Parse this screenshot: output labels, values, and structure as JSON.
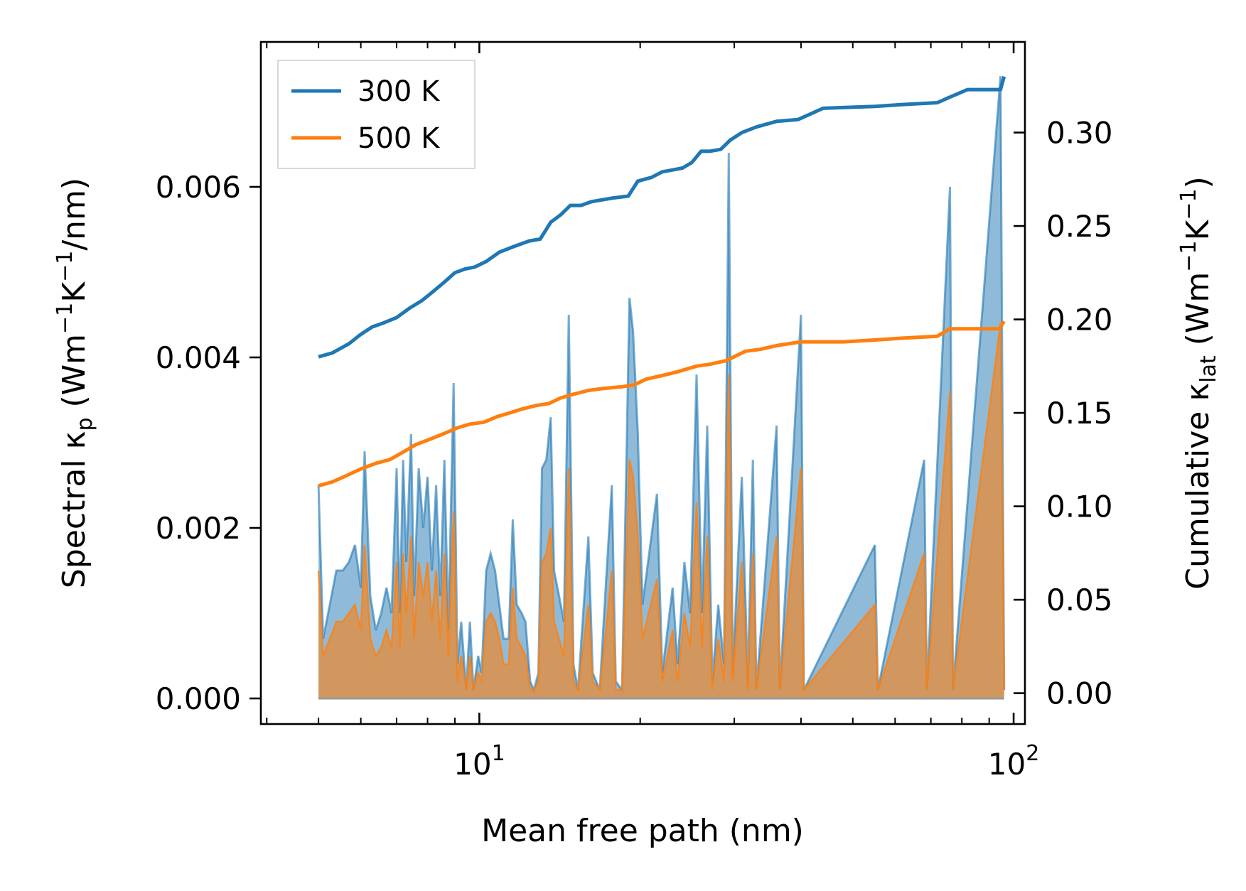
{
  "chart_data": {
    "type": "line",
    "title": "",
    "xlabel": "Mean free path (nm)",
    "xscale": "log",
    "xlim": [
      3.9,
      105
    ],
    "x_ticks": [
      {
        "value": 10,
        "base": "10",
        "exp": "1"
      },
      {
        "value": 100,
        "base": "10",
        "exp": "2"
      }
    ],
    "y_left": {
      "label": {
        "prefix": "Spectral κ",
        "sub": "p",
        "unit_a": " (Wm",
        "sup_a": "−1",
        "unit_b": "K",
        "sup_b": "−1",
        "unit_c": "/nm)"
      },
      "lim": [
        -0.0003,
        0.0077
      ],
      "ticks": [
        "0.000",
        "0.002",
        "0.004",
        "0.006"
      ],
      "tick_values": [
        0,
        0.002,
        0.004,
        0.006
      ]
    },
    "y_right": {
      "label": {
        "prefix": "Cumulative κ",
        "sub": "lat",
        "unit_a": " (Wm",
        "sup_a": "−1",
        "unit_b": "K",
        "sup_b": "−1",
        "unit_c": ")"
      },
      "lim": [
        -0.0165,
        0.3485
      ],
      "ticks": [
        "0.00",
        "0.05",
        "0.10",
        "0.15",
        "0.20",
        "0.25",
        "0.30"
      ],
      "tick_values": [
        0,
        0.05,
        0.1,
        0.15,
        0.2,
        0.25,
        0.3
      ]
    },
    "legend": {
      "position": "top-left",
      "entries": [
        "300 K",
        "500 K"
      ]
    },
    "colors": {
      "t300": "#1f77b4",
      "t500": "#ff7f0e",
      "fill300": "#1f77b4",
      "fill500": "#ff7f0e"
    },
    "spectral_300K": [
      [
        5.0,
        0.0025
      ],
      [
        5.1,
        0.0007
      ],
      [
        5.25,
        0.0011
      ],
      [
        5.4,
        0.0015
      ],
      [
        5.55,
        0.0015
      ],
      [
        5.7,
        0.0016
      ],
      [
        5.85,
        0.0018
      ],
      [
        6.0,
        0.0013
      ],
      [
        6.1,
        0.0029
      ],
      [
        6.25,
        0.0012
      ],
      [
        6.4,
        0.0008
      ],
      [
        6.55,
        0.001
      ],
      [
        6.7,
        0.0013
      ],
      [
        6.85,
        0.001
      ],
      [
        7.0,
        0.0027
      ],
      [
        7.1,
        0.001
      ],
      [
        7.2,
        0.0028
      ],
      [
        7.3,
        0.0016
      ],
      [
        7.45,
        0.0031
      ],
      [
        7.55,
        0.0012
      ],
      [
        7.7,
        0.0027
      ],
      [
        7.85,
        0.002
      ],
      [
        8.0,
        0.0026
      ],
      [
        8.15,
        0.0015
      ],
      [
        8.3,
        0.0025
      ],
      [
        8.45,
        0.0012
      ],
      [
        8.6,
        0.0028
      ],
      [
        8.75,
        0.0008
      ],
      [
        8.95,
        0.0037
      ],
      [
        9.1,
        0.0004
      ],
      [
        9.25,
        0.0009
      ],
      [
        9.45,
        0.0001
      ],
      [
        9.6,
        0.0009
      ],
      [
        9.75,
        0.0001
      ],
      [
        9.95,
        0.0005
      ],
      [
        10.1,
        0.0003
      ],
      [
        10.3,
        0.0015
      ],
      [
        10.5,
        0.0017
      ],
      [
        10.7,
        0.0015
      ],
      [
        10.9,
        0.0011
      ],
      [
        11.1,
        0.0007
      ],
      [
        11.35,
        0.0007
      ],
      [
        11.55,
        0.0021
      ],
      [
        11.75,
        0.0011
      ],
      [
        12.0,
        0.001
      ],
      [
        12.2,
        0.0009
      ],
      [
        12.45,
        0.0002
      ],
      [
        12.65,
        0.0001
      ],
      [
        12.9,
        0.0003
      ],
      [
        13.1,
        0.0027
      ],
      [
        13.35,
        0.0028
      ],
      [
        13.6,
        0.0033
      ],
      [
        13.8,
        0.0015
      ],
      [
        14.1,
        0.0012
      ],
      [
        14.4,
        0.0009
      ],
      [
        14.7,
        0.0045
      ],
      [
        15.0,
        0.0004
      ],
      [
        15.3,
        0.0001
      ],
      [
        16.0,
        0.0019
      ],
      [
        16.3,
        0.0003
      ],
      [
        16.8,
        0.0001
      ],
      [
        17.2,
        0.0012
      ],
      [
        17.7,
        0.0025
      ],
      [
        18.0,
        0.0002
      ],
      [
        18.5,
        0.0001
      ],
      [
        19.1,
        0.0047
      ],
      [
        19.4,
        0.0043
      ],
      [
        19.8,
        0.0031
      ],
      [
        20.2,
        0.0011
      ],
      [
        21.5,
        0.0024
      ],
      [
        22.0,
        0.0003
      ],
      [
        23.0,
        0.0013
      ],
      [
        23.5,
        0.0004
      ],
      [
        24.2,
        0.0016
      ],
      [
        24.8,
        0.001
      ],
      [
        25.5,
        0.0038
      ],
      [
        26.1,
        0.001
      ],
      [
        26.7,
        0.0032
      ],
      [
        27.3,
        0.0002
      ],
      [
        28.0,
        0.0011
      ],
      [
        28.7,
        0.0004
      ],
      [
        29.3,
        0.0064
      ],
      [
        29.8,
        0.0003
      ],
      [
        31.0,
        0.0026
      ],
      [
        31.8,
        0.0002
      ],
      [
        32.5,
        0.0028
      ],
      [
        33.0,
        0.0001
      ],
      [
        36.0,
        0.0032
      ],
      [
        36.5,
        0.0001
      ],
      [
        40.0,
        0.0045
      ],
      [
        40.5,
        0.0001
      ],
      [
        55.0,
        0.0018
      ],
      [
        55.7,
        0.0001
      ],
      [
        68.0,
        0.0028
      ],
      [
        68.8,
        0.0001
      ],
      [
        76.0,
        0.006
      ],
      [
        77.0,
        0.0001
      ],
      [
        94.5,
        0.0073
      ],
      [
        96.0,
        0.0001
      ]
    ],
    "spectral_500K": [
      [
        5.0,
        0.0015
      ],
      [
        5.1,
        0.0005
      ],
      [
        5.25,
        0.0007
      ],
      [
        5.4,
        0.0009
      ],
      [
        5.55,
        0.0009
      ],
      [
        5.7,
        0.001
      ],
      [
        5.85,
        0.0011
      ],
      [
        6.0,
        0.0008
      ],
      [
        6.1,
        0.0018
      ],
      [
        6.25,
        0.0007
      ],
      [
        6.4,
        0.0005
      ],
      [
        6.55,
        0.0006
      ],
      [
        6.7,
        0.0008
      ],
      [
        6.85,
        0.0006
      ],
      [
        7.0,
        0.0016
      ],
      [
        7.1,
        0.0006
      ],
      [
        7.2,
        0.0017
      ],
      [
        7.3,
        0.001
      ],
      [
        7.45,
        0.0019
      ],
      [
        7.55,
        0.0007
      ],
      [
        7.7,
        0.0016
      ],
      [
        7.85,
        0.0012
      ],
      [
        8.0,
        0.0016
      ],
      [
        8.15,
        0.0009
      ],
      [
        8.3,
        0.0015
      ],
      [
        8.45,
        0.0007
      ],
      [
        8.6,
        0.0017
      ],
      [
        8.75,
        0.0005
      ],
      [
        8.95,
        0.0022
      ],
      [
        9.1,
        0.0002
      ],
      [
        9.25,
        0.0005
      ],
      [
        9.45,
        0.0001
      ],
      [
        9.6,
        0.0005
      ],
      [
        9.75,
        0.0001
      ],
      [
        9.95,
        0.0003
      ],
      [
        10.1,
        0.0002
      ],
      [
        10.3,
        0.0009
      ],
      [
        10.5,
        0.001
      ],
      [
        10.7,
        0.0009
      ],
      [
        10.9,
        0.0007
      ],
      [
        11.1,
        0.0004
      ],
      [
        11.35,
        0.0004
      ],
      [
        11.55,
        0.0013
      ],
      [
        11.75,
        0.0007
      ],
      [
        12.0,
        0.0006
      ],
      [
        12.2,
        0.0005
      ],
      [
        12.45,
        0.0001
      ],
      [
        12.65,
        0.0001
      ],
      [
        12.9,
        0.0002
      ],
      [
        13.1,
        0.0016
      ],
      [
        13.35,
        0.0017
      ],
      [
        13.6,
        0.002
      ],
      [
        13.8,
        0.0009
      ],
      [
        14.1,
        0.0007
      ],
      [
        14.4,
        0.0005
      ],
      [
        14.7,
        0.0027
      ],
      [
        15.0,
        0.0002
      ],
      [
        15.3,
        0.0001
      ],
      [
        16.0,
        0.0011
      ],
      [
        16.3,
        0.0002
      ],
      [
        16.8,
        0.0001
      ],
      [
        17.2,
        0.0007
      ],
      [
        17.7,
        0.0015
      ],
      [
        18.0,
        0.0001
      ],
      [
        18.5,
        0.0001
      ],
      [
        19.1,
        0.0028
      ],
      [
        19.4,
        0.0026
      ],
      [
        19.8,
        0.0019
      ],
      [
        20.2,
        0.0007
      ],
      [
        21.5,
        0.0014
      ],
      [
        22.0,
        0.0002
      ],
      [
        23.0,
        0.0008
      ],
      [
        23.5,
        0.0002
      ],
      [
        24.2,
        0.001
      ],
      [
        24.8,
        0.0006
      ],
      [
        25.5,
        0.0023
      ],
      [
        26.1,
        0.0006
      ],
      [
        26.7,
        0.0019
      ],
      [
        27.3,
        0.0001
      ],
      [
        28.0,
        0.0007
      ],
      [
        28.7,
        0.0002
      ],
      [
        29.3,
        0.0038
      ],
      [
        29.8,
        0.0002
      ],
      [
        31.0,
        0.0016
      ],
      [
        31.8,
        0.0001
      ],
      [
        32.5,
        0.0017
      ],
      [
        33.0,
        0.0001
      ],
      [
        36.0,
        0.0019
      ],
      [
        36.5,
        0.0001
      ],
      [
        40.0,
        0.0027
      ],
      [
        40.5,
        0.0001
      ],
      [
        55.0,
        0.0011
      ],
      [
        55.7,
        0.0001
      ],
      [
        68.0,
        0.0017
      ],
      [
        68.8,
        0.0001
      ],
      [
        76.0,
        0.0036
      ],
      [
        77.0,
        0.0001
      ],
      [
        94.5,
        0.0044
      ],
      [
        96.0,
        0.0001
      ]
    ],
    "cumulative_300K": [
      [
        5.0,
        0.18
      ],
      [
        5.3,
        0.182
      ],
      [
        5.7,
        0.187
      ],
      [
        6.0,
        0.192
      ],
      [
        6.3,
        0.196
      ],
      [
        6.6,
        0.198
      ],
      [
        7.0,
        0.201
      ],
      [
        7.4,
        0.206
      ],
      [
        7.8,
        0.21
      ],
      [
        8.2,
        0.215
      ],
      [
        8.6,
        0.22
      ],
      [
        9.0,
        0.225
      ],
      [
        9.4,
        0.227
      ],
      [
        9.8,
        0.228
      ],
      [
        10.3,
        0.231
      ],
      [
        10.9,
        0.236
      ],
      [
        11.6,
        0.239
      ],
      [
        12.4,
        0.242
      ],
      [
        13.0,
        0.243
      ],
      [
        13.6,
        0.252
      ],
      [
        14.2,
        0.256
      ],
      [
        14.8,
        0.261
      ],
      [
        15.5,
        0.261
      ],
      [
        16.2,
        0.263
      ],
      [
        17.0,
        0.264
      ],
      [
        17.8,
        0.265
      ],
      [
        19.0,
        0.266
      ],
      [
        19.8,
        0.274
      ],
      [
        21.0,
        0.276
      ],
      [
        22.0,
        0.279
      ],
      [
        23.0,
        0.28
      ],
      [
        24.0,
        0.281
      ],
      [
        25.0,
        0.284
      ],
      [
        26.0,
        0.29
      ],
      [
        27.0,
        0.29
      ],
      [
        28.3,
        0.291
      ],
      [
        29.5,
        0.296
      ],
      [
        31.0,
        0.3
      ],
      [
        33.0,
        0.303
      ],
      [
        36.0,
        0.306
      ],
      [
        39.5,
        0.307
      ],
      [
        44.0,
        0.313
      ],
      [
        55.0,
        0.314
      ],
      [
        62.0,
        0.315
      ],
      [
        72.0,
        0.316
      ],
      [
        76.0,
        0.319
      ],
      [
        82.0,
        0.323
      ],
      [
        94.5,
        0.323
      ],
      [
        96.0,
        0.33
      ]
    ],
    "cumulative_500K": [
      [
        5.0,
        0.111
      ],
      [
        5.3,
        0.113
      ],
      [
        5.6,
        0.116
      ],
      [
        6.0,
        0.12
      ],
      [
        6.4,
        0.123
      ],
      [
        6.8,
        0.125
      ],
      [
        7.2,
        0.129
      ],
      [
        7.6,
        0.133
      ],
      [
        8.1,
        0.136
      ],
      [
        8.6,
        0.139
      ],
      [
        9.1,
        0.142
      ],
      [
        9.6,
        0.144
      ],
      [
        10.2,
        0.145
      ],
      [
        10.8,
        0.148
      ],
      [
        11.4,
        0.15
      ],
      [
        12.0,
        0.152
      ],
      [
        12.8,
        0.154
      ],
      [
        13.5,
        0.155
      ],
      [
        14.2,
        0.158
      ],
      [
        15.0,
        0.16
      ],
      [
        16.0,
        0.162
      ],
      [
        17.0,
        0.163
      ],
      [
        18.5,
        0.164
      ],
      [
        19.5,
        0.165
      ],
      [
        20.5,
        0.168
      ],
      [
        22.0,
        0.17
      ],
      [
        23.5,
        0.172
      ],
      [
        25.5,
        0.175
      ],
      [
        27.0,
        0.176
      ],
      [
        29.0,
        0.178
      ],
      [
        31.5,
        0.183
      ],
      [
        33.5,
        0.184
      ],
      [
        36.0,
        0.186
      ],
      [
        40.0,
        0.188
      ],
      [
        48.0,
        0.188
      ],
      [
        55.0,
        0.189
      ],
      [
        62.0,
        0.19
      ],
      [
        72.0,
        0.191
      ],
      [
        76.0,
        0.195
      ],
      [
        94.0,
        0.195
      ],
      [
        96.0,
        0.199
      ]
    ]
  }
}
